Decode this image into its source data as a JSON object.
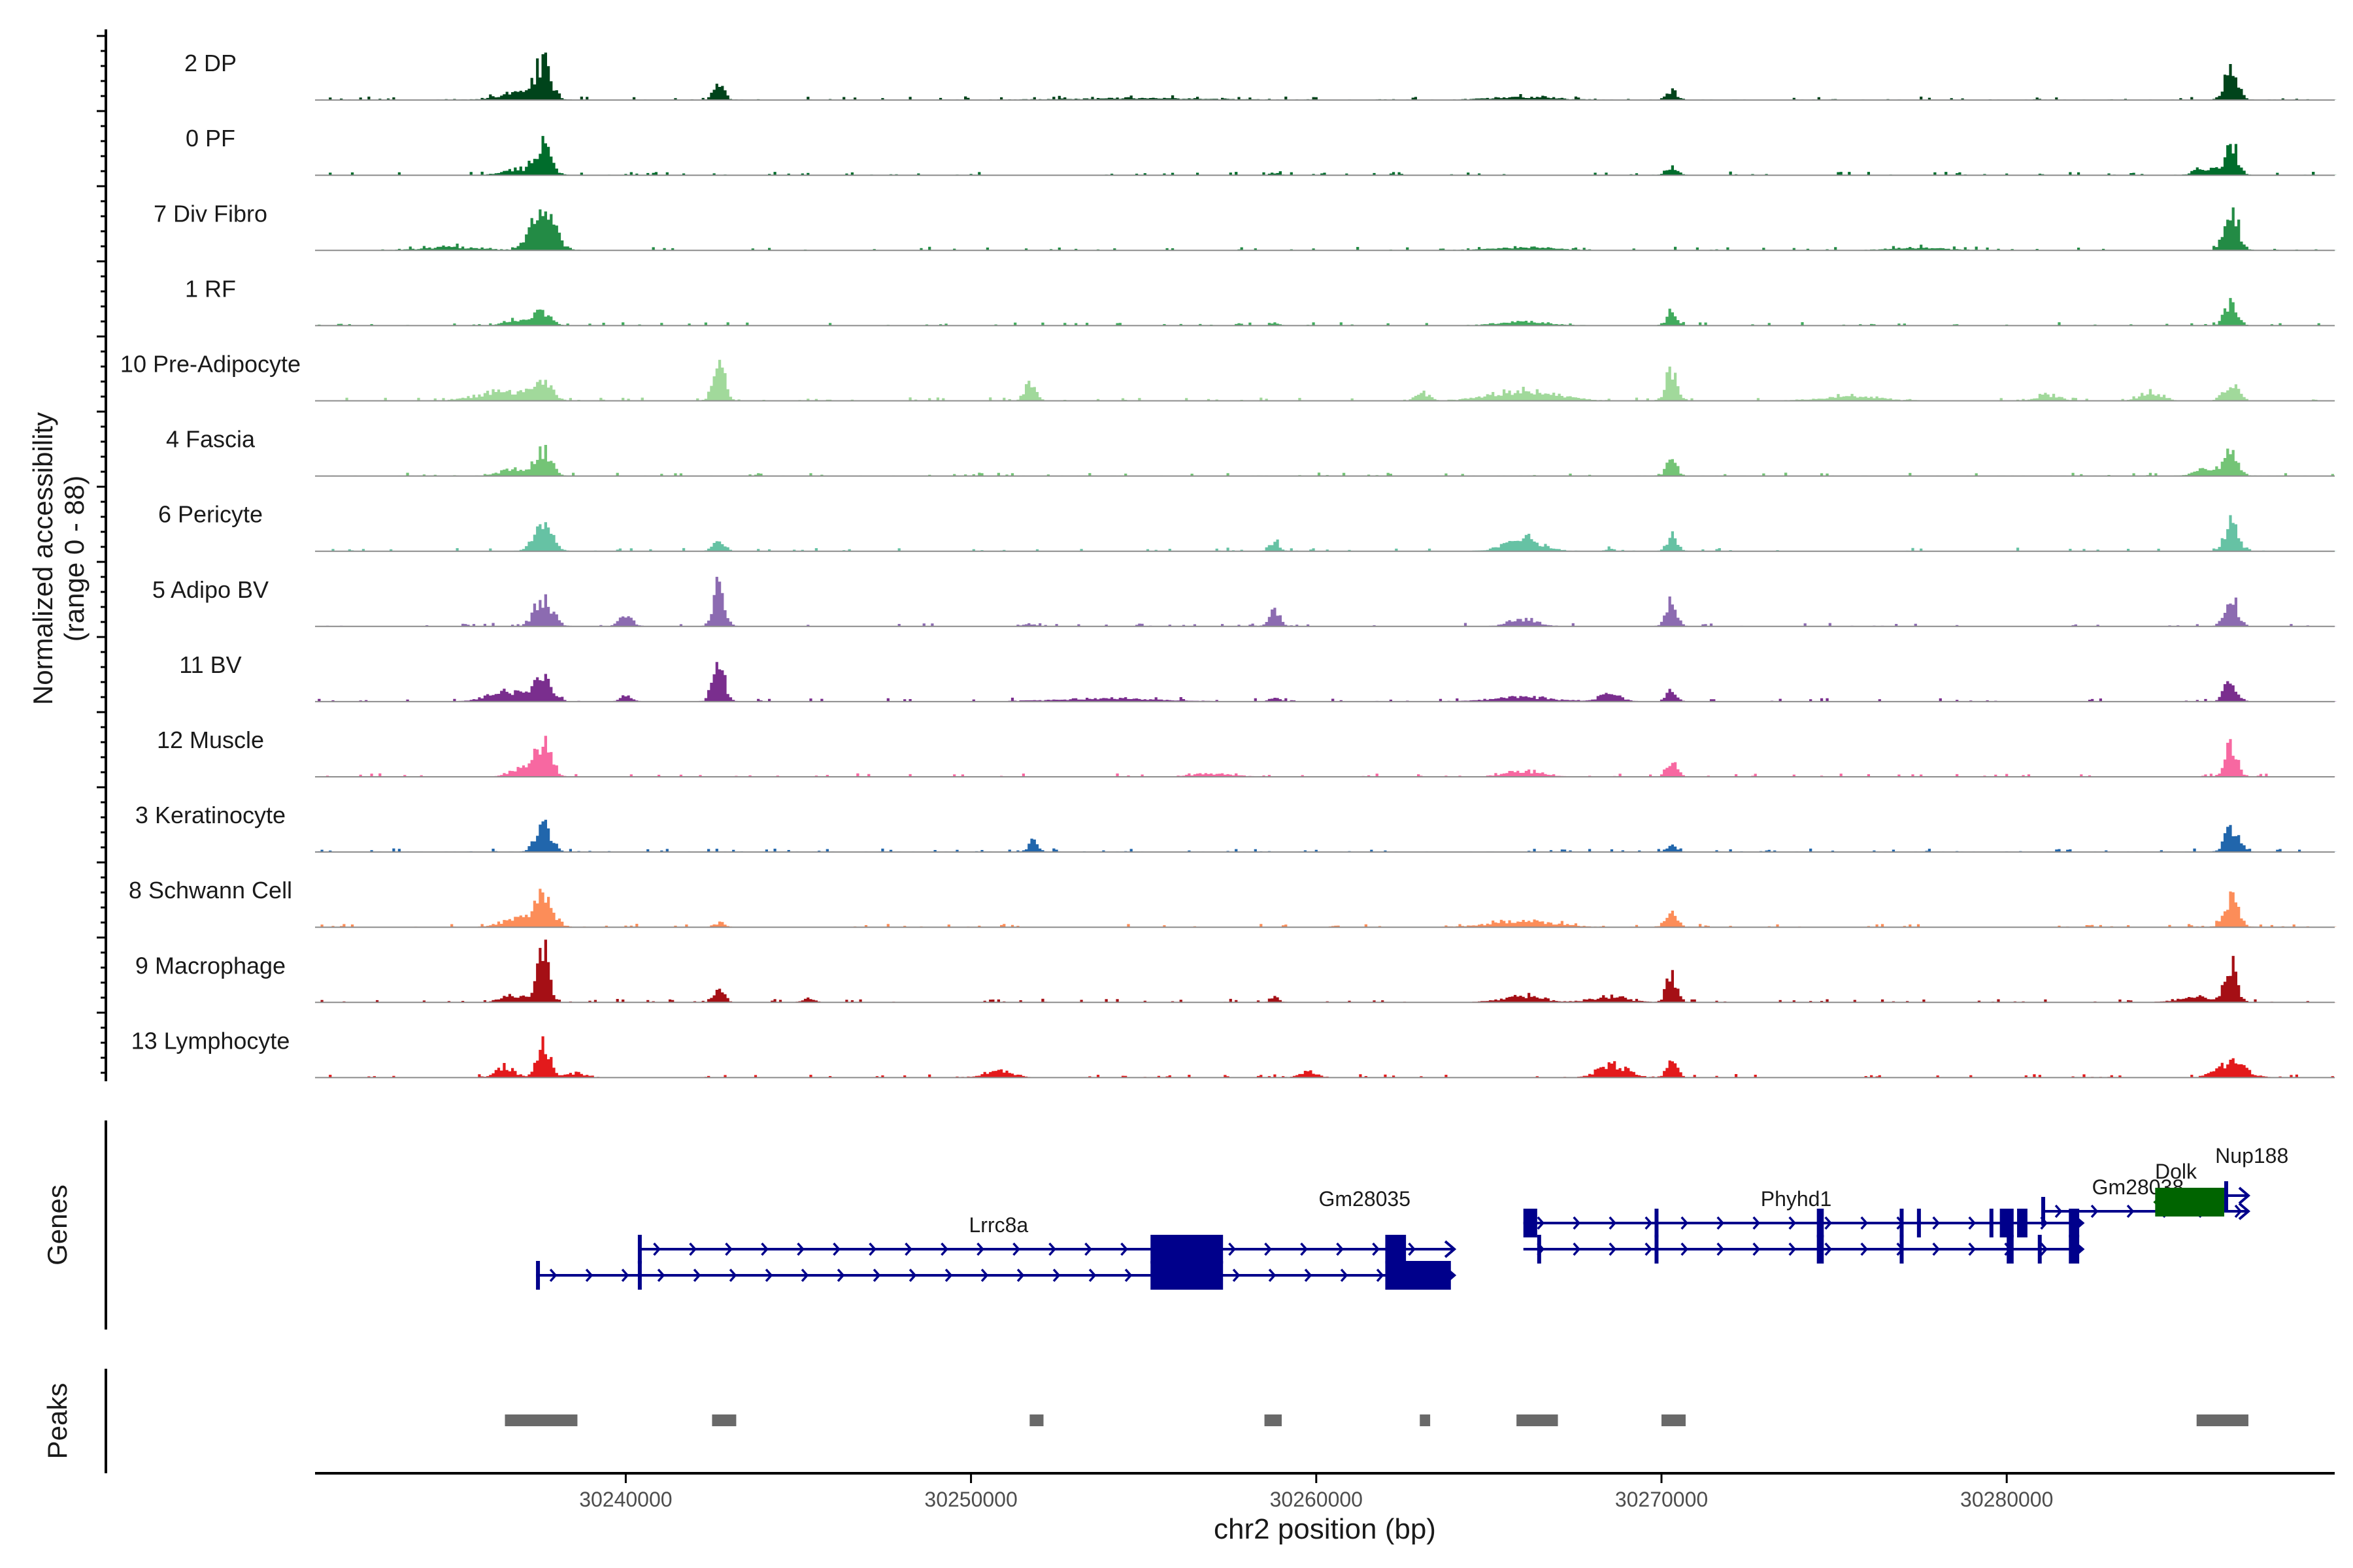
{
  "chart_data": {
    "type": "area",
    "ylabel": "Normalized accessibility",
    "ylabel_range": "(range 0 - 88)",
    "ylim": [
      0,
      88
    ],
    "xlabel": "chr2 position (bp)",
    "xlim": [
      30231000,
      30289500
    ],
    "x_ticks": [
      30240000,
      30250000,
      30260000,
      30270000,
      30280000
    ],
    "x_tick_labels": [
      "30240000",
      "30250000",
      "30260000",
      "30270000",
      "30280000"
    ],
    "track_labels": {
      "genes": "Genes",
      "peaks": "Peaks"
    },
    "series": [
      {
        "name": "2 DP",
        "color": "#00441b",
        "peaks": [
          [
            30237600,
            50,
            220
          ],
          [
            30242700,
            26,
            150
          ],
          [
            30270300,
            13,
            150
          ],
          [
            30286500,
            45,
            180
          ],
          [
            30236800,
            9,
            500
          ],
          [
            30266000,
            4,
            900
          ],
          [
            30255000,
            2,
            2000
          ]
        ]
      },
      {
        "name": "0 PF",
        "color": "#006d2c",
        "peaks": [
          [
            30237600,
            42,
            230
          ],
          [
            30270300,
            11,
            150
          ],
          [
            30286500,
            42,
            180
          ],
          [
            30236800,
            8,
            400
          ],
          [
            30285800,
            8,
            300
          ],
          [
            30258800,
            3,
            120
          ]
        ]
      },
      {
        "name": "7 Div Fibro",
        "color": "#238b45",
        "peaks": [
          [
            30237600,
            55,
            320
          ],
          [
            30286500,
            58,
            200
          ],
          [
            30235000,
            4,
            800
          ],
          [
            30266000,
            4,
            900
          ],
          [
            30277500,
            4,
            700
          ]
        ]
      },
      {
        "name": "1 RF",
        "color": "#41ab5d",
        "peaks": [
          [
            30237600,
            20,
            220
          ],
          [
            30270300,
            18,
            150
          ],
          [
            30286500,
            30,
            180
          ],
          [
            30236800,
            8,
            300
          ],
          [
            30266000,
            5,
            700
          ],
          [
            30258800,
            3,
            120
          ]
        ]
      },
      {
        "name": "10 Pre-Adipocyte",
        "color": "#a1d99b",
        "peaks": [
          [
            30237600,
            24,
            250
          ],
          [
            30242700,
            55,
            160
          ],
          [
            30251700,
            25,
            150
          ],
          [
            30270300,
            42,
            160
          ],
          [
            30286500,
            25,
            200
          ],
          [
            30236500,
            14,
            700
          ],
          [
            30266000,
            14,
            900
          ],
          [
            30263100,
            10,
            200
          ],
          [
            30281200,
            8,
            300
          ],
          [
            30284200,
            12,
            300
          ],
          [
            30275500,
            5,
            900
          ]
        ]
      },
      {
        "name": "4 Fascia",
        "color": "#74c476",
        "peaks": [
          [
            30237600,
            36,
            230
          ],
          [
            30270300,
            22,
            150
          ],
          [
            30286500,
            38,
            190
          ],
          [
            30236800,
            10,
            400
          ],
          [
            30285800,
            10,
            300
          ]
        ]
      },
      {
        "name": "6 Pericyte",
        "color": "#66c2a4",
        "peaks": [
          [
            30237600,
            38,
            250
          ],
          [
            30242700,
            18,
            150
          ],
          [
            30258800,
            14,
            130
          ],
          [
            30266000,
            18,
            500
          ],
          [
            30270300,
            20,
            150
          ],
          [
            30286500,
            42,
            180
          ],
          [
            30268500,
            5,
            100
          ]
        ]
      },
      {
        "name": "5 Adipo BV",
        "color": "#8c6bb1",
        "peaks": [
          [
            30237600,
            36,
            250
          ],
          [
            30242700,
            55,
            160
          ],
          [
            30240000,
            14,
            180
          ],
          [
            30258800,
            22,
            150
          ],
          [
            30270300,
            34,
            150
          ],
          [
            30286500,
            40,
            180
          ],
          [
            30266000,
            10,
            400
          ],
          [
            30251700,
            4,
            150
          ]
        ]
      },
      {
        "name": "11 BV",
        "color": "#7a2e8e",
        "peaks": [
          [
            30237600,
            30,
            260
          ],
          [
            30242700,
            50,
            170
          ],
          [
            30236500,
            14,
            500
          ],
          [
            30240000,
            10,
            150
          ],
          [
            30270300,
            14,
            150
          ],
          [
            30286500,
            30,
            180
          ],
          [
            30268500,
            10,
            300
          ],
          [
            30266000,
            6,
            900
          ],
          [
            30258800,
            6,
            120
          ],
          [
            30254000,
            4,
            1500
          ]
        ]
      },
      {
        "name": "12 Muscle",
        "color": "#f768a1",
        "peaks": [
          [
            30237600,
            45,
            230
          ],
          [
            30270300,
            20,
            150
          ],
          [
            30286500,
            40,
            180
          ],
          [
            30236900,
            10,
            300
          ],
          [
            30266000,
            8,
            500
          ],
          [
            30257000,
            4,
            600
          ]
        ]
      },
      {
        "name": "3 Keratinocyte",
        "color": "#2166ac",
        "peaks": [
          [
            30237600,
            34,
            220
          ],
          [
            30251800,
            14,
            140
          ],
          [
            30270300,
            9,
            130
          ],
          [
            30286500,
            36,
            180
          ]
        ]
      },
      {
        "name": "8 Schwann Cell",
        "color": "#fc8d59",
        "peaks": [
          [
            30237600,
            40,
            280
          ],
          [
            30270300,
            18,
            160
          ],
          [
            30286500,
            38,
            200
          ],
          [
            30236800,
            10,
            400
          ],
          [
            30242700,
            6,
            150
          ],
          [
            30266000,
            8,
            900
          ]
        ]
      },
      {
        "name": "9 Macrophage",
        "color": "#a50f15",
        "peaks": [
          [
            30237600,
            70,
            170
          ],
          [
            30242700,
            24,
            140
          ],
          [
            30270300,
            40,
            150
          ],
          [
            30286500,
            50,
            170
          ],
          [
            30236800,
            10,
            350
          ],
          [
            30266000,
            8,
            600
          ],
          [
            30268500,
            8,
            500
          ],
          [
            30258800,
            8,
            120
          ],
          [
            30245300,
            6,
            150
          ],
          [
            30285500,
            8,
            500
          ]
        ]
      },
      {
        "name": "13 Lymphocyte",
        "color": "#e31a1c",
        "peaks": [
          [
            30237600,
            55,
            170
          ],
          [
            30236500,
            14,
            250
          ],
          [
            30268600,
            18,
            400
          ],
          [
            30270300,
            22,
            150
          ],
          [
            30286500,
            20,
            400
          ],
          [
            30250800,
            8,
            400
          ],
          [
            30259800,
            8,
            250
          ],
          [
            30238500,
            6,
            300
          ]
        ]
      }
    ],
    "genes": [
      {
        "name": "Lrrc8a",
        "label_x": 30250800,
        "label_row": 2,
        "color": "#00008b",
        "transcripts": [
          {
            "row": 2,
            "start": 30240400,
            "end": 30264000,
            "exons": [
              [
                30240350,
                30240450
              ],
              [
                30255200,
                30257300
              ],
              [
                30262000,
                30262600
              ]
            ]
          },
          {
            "row": 3,
            "start": 30237400,
            "end": 30264000,
            "exons": [
              [
                30237400,
                30237500
              ],
              [
                30240350,
                30240450
              ],
              [
                30255200,
                30257300
              ],
              [
                30262000,
                30263900
              ]
            ]
          }
        ]
      },
      {
        "name": "Gm28035",
        "label_x": 30261400,
        "label_row": 1,
        "color": "#00008b",
        "transcripts": []
      },
      {
        "name": "Phyhd1",
        "label_x": 30273900,
        "label_row": 1,
        "color": "#00008b",
        "transcripts": [
          {
            "row": 1,
            "start": 30266000,
            "end": 30282200,
            "exons": [
              [
                30266000,
                30266400
              ],
              [
                30269800,
                30269900
              ],
              [
                30274500,
                30274700
              ],
              [
                30276900,
                30277000
              ],
              [
                30277400,
                30277500
              ],
              [
                30279500,
                30279600
              ],
              [
                30279800,
                30280200
              ],
              [
                30280300,
                30280600
              ],
              [
                30281800,
                30282100
              ]
            ]
          },
          {
            "row": 2,
            "start": 30266000,
            "end": 30282200,
            "exons": [
              [
                30266400,
                30266500
              ],
              [
                30269800,
                30269900
              ],
              [
                30274500,
                30274700
              ],
              [
                30276900,
                30277000
              ],
              [
                30280000,
                30280200
              ],
              [
                30280900,
                30281000
              ],
              [
                30281800,
                30282100
              ]
            ]
          }
        ]
      },
      {
        "name": "Gm28038",
        "label_x": 30283800,
        "label_row": 0.55,
        "color": "#00008b",
        "transcripts": [
          {
            "row": 0.55,
            "start": 30281000,
            "end": 30287000,
            "exons": [
              [
                30281000,
                30281100
              ]
            ]
          }
        ]
      },
      {
        "name": "Dolk",
        "label_x": 30284900,
        "label_row": -0.05,
        "color": "#006400",
        "transcripts": [
          {
            "row": 0.2,
            "start": 30284300,
            "end": 30286300,
            "exons": [
              [
                30284300,
                30286300
              ]
            ],
            "strand": "-"
          }
        ]
      },
      {
        "name": "Nup188",
        "label_x": 30287100,
        "label_row": -0.65,
        "color": "#00008b",
        "transcripts": [
          {
            "row": -0.05,
            "start": 30286300,
            "end": 30287000,
            "exons": [
              [
                30286300,
                30286380
              ]
            ]
          }
        ]
      }
    ],
    "peaks": [
      [
        30236500,
        30238600
      ],
      [
        30242500,
        30243200
      ],
      [
        30251700,
        30252100
      ],
      [
        30258500,
        30259000
      ],
      [
        30263000,
        30263300
      ],
      [
        30265800,
        30267000
      ],
      [
        30270000,
        30270700
      ],
      [
        30285500,
        30287000
      ]
    ]
  }
}
